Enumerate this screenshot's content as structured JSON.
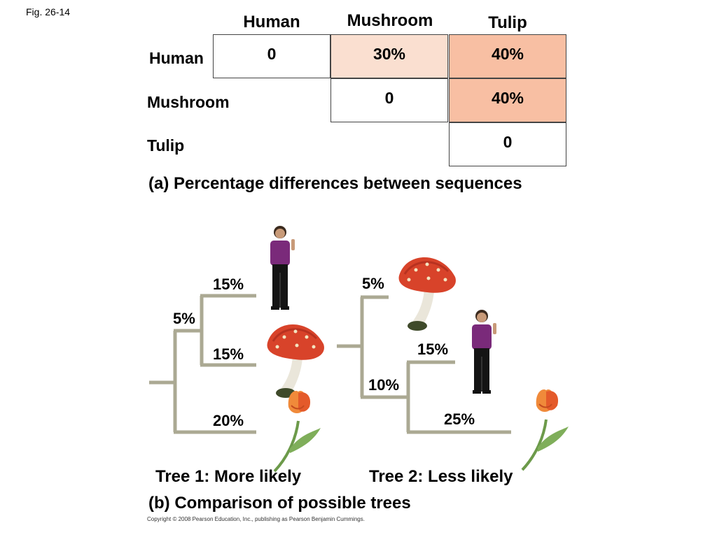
{
  "figure_label": "Fig. 26-14",
  "matrix": {
    "columns": [
      "Human",
      "Mushroom",
      "Tulip"
    ],
    "rows": [
      "Human",
      "Mushroom",
      "Tulip"
    ],
    "cells": {
      "human_human": "0",
      "human_mushroom": "30%",
      "human_tulip": "40%",
      "mushroom_mushroom": "0",
      "mushroom_tulip": "40%",
      "tulip_tulip": "0"
    },
    "colors": {
      "light": "#fadfd0",
      "medium": "#f8bfa3",
      "blank": "#ffffff"
    },
    "caption": "(a) Percentage differences between sequences"
  },
  "tree1": {
    "branch_human": "15%",
    "branch_inner": "5%",
    "branch_mushroom": "15%",
    "branch_tulip": "20%",
    "label": "Tree 1: More likely"
  },
  "tree2": {
    "branch_mushroom": "5%",
    "branch_human": "15%",
    "branch_inner": "10%",
    "branch_tulip": "25%",
    "label": "Tree 2: Less likely"
  },
  "caption_b": "(b) Comparison of possible trees",
  "copyright": "Copyright © 2008 Pearson Education, Inc., publishing as Pearson Benjamin Cummings.",
  "branch_color": "#aba993",
  "icons": [
    "person-icon",
    "mushroom-icon",
    "tulip-icon"
  ]
}
